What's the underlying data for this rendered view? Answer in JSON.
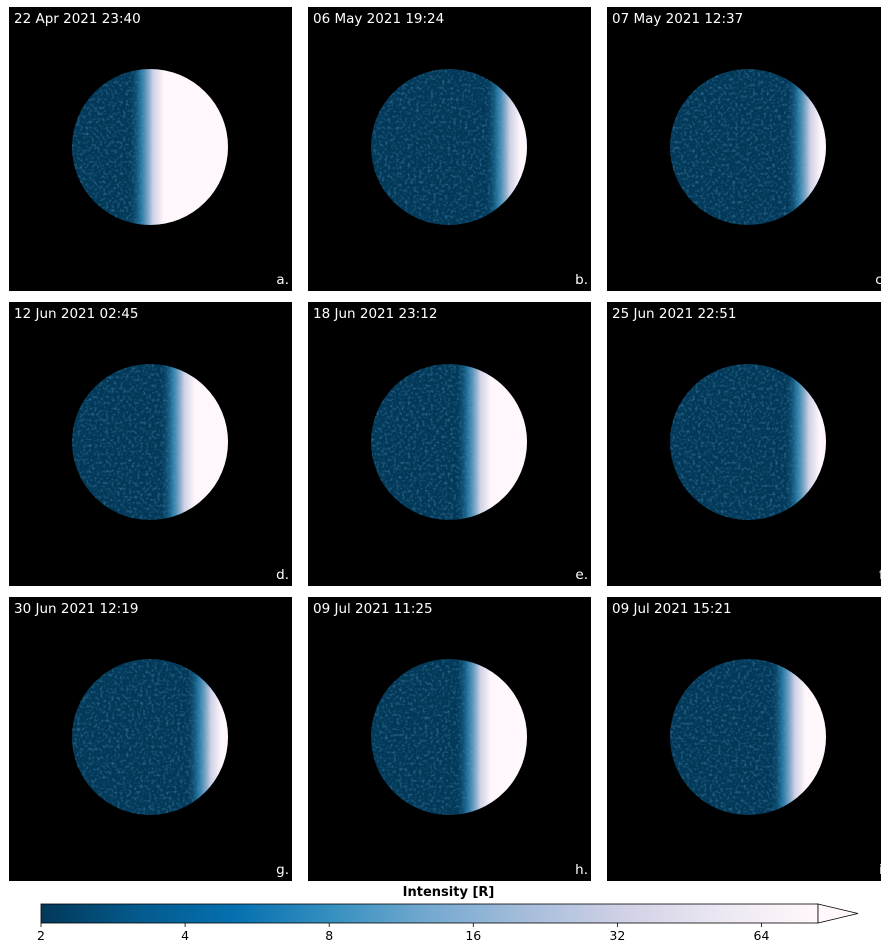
{
  "panels": [
    {
      "timestamp": "22 Apr 2021 23:40",
      "letter": "a.",
      "illuminated_fraction": 0.5
    },
    {
      "timestamp": "06 May 2021 19:24",
      "letter": "b.",
      "illuminated_fraction": 0.13
    },
    {
      "timestamp": "07 May 2021 12:37",
      "letter": "c.",
      "illuminated_fraction": 0.12
    },
    {
      "timestamp": "12 Jun 2021 02:45",
      "letter": "d.",
      "illuminated_fraction": 0.3
    },
    {
      "timestamp": "18 Jun 2021 23:12",
      "letter": "e.",
      "illuminated_fraction": 0.32
    },
    {
      "timestamp": "25 Jun 2021 22:51",
      "letter": "f.",
      "illuminated_fraction": 0.13
    },
    {
      "timestamp": "30 Jun 2021 12:19",
      "letter": "g.",
      "illuminated_fraction": 0.13
    },
    {
      "timestamp": "09 Jul 2021 11:25",
      "letter": "h.",
      "illuminated_fraction": 0.32
    },
    {
      "timestamp": "09 Jul 2021 15:21",
      "letter": "i.",
      "illuminated_fraction": 0.22
    }
  ],
  "colorbar": {
    "title": "Intensity [R]",
    "ticks": [
      "2",
      "4",
      "8",
      "16",
      "32",
      "64"
    ],
    "scale": "log2",
    "extend": "max",
    "colors": [
      "#023858",
      "#045a8d",
      "#0570b0",
      "#3690c0",
      "#74a9cf",
      "#a6bddb",
      "#d0d1e6",
      "#ece7f2",
      "#fff7fb"
    ]
  }
}
